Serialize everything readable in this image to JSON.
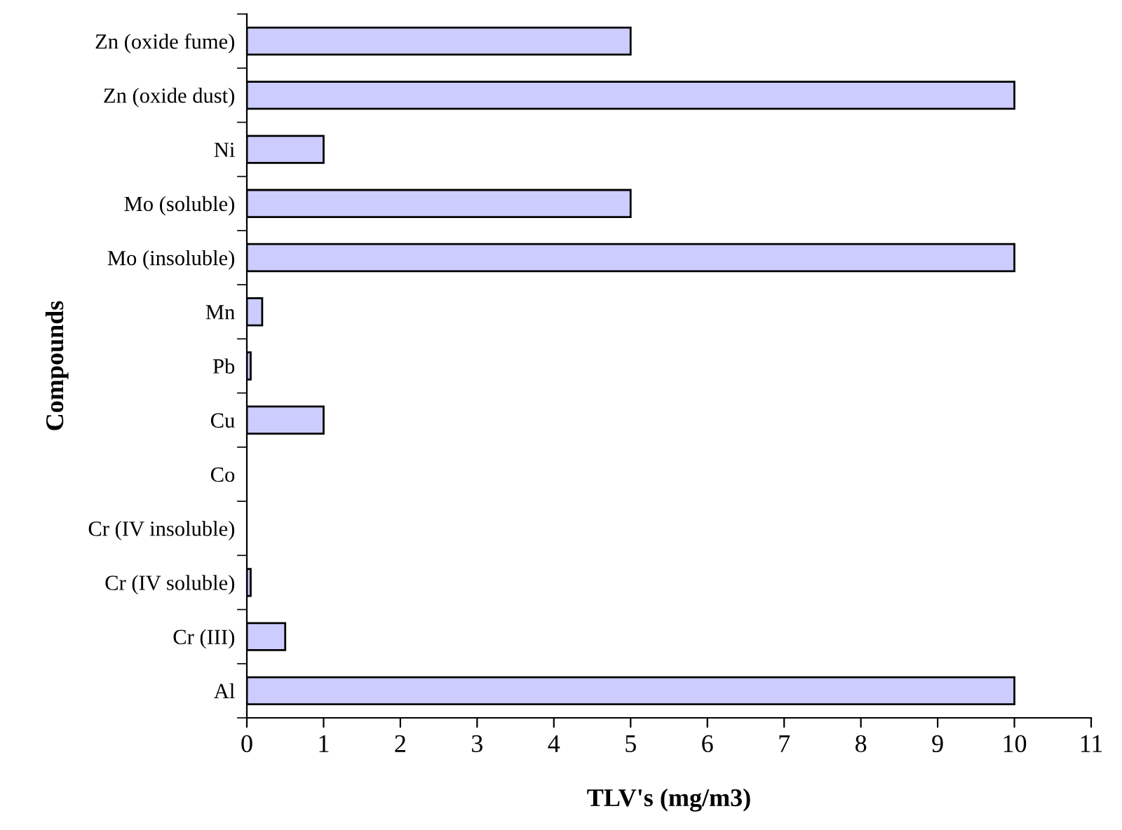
{
  "chart_data": {
    "type": "bar",
    "orientation": "horizontal",
    "xlabel": "TLV's (mg/m3)",
    "ylabel": "Compounds",
    "categories": [
      "Zn (oxide fume)",
      "Zn (oxide dust)",
      "Ni",
      "Mo (soluble)",
      "Mo (insoluble)",
      "Mn",
      "Pb",
      "Cu",
      "Co",
      "Cr (IV insoluble)",
      "Cr (IV soluble)",
      "Cr (III)",
      "Al"
    ],
    "values": [
      5,
      10,
      1,
      5,
      10,
      0.2,
      0.05,
      1,
      0,
      0,
      0.05,
      0.5,
      10
    ],
    "color": "#ccccff",
    "xlim": [
      0,
      11
    ],
    "xticks": [
      0,
      1,
      2,
      3,
      4,
      5,
      6,
      7,
      8,
      9,
      10,
      11
    ],
    "grid": false,
    "legend": false
  }
}
